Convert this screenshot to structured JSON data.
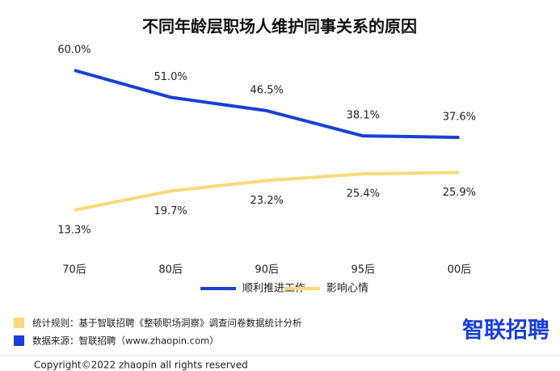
{
  "chart_data": {
    "type": "line",
    "title": "不同年龄层职场人维护同事关系的原因",
    "categories": [
      "70后",
      "80后",
      "90后",
      "95后",
      "00后"
    ],
    "series": [
      {
        "name": "顺利推进工作",
        "color": "#1a3fd6",
        "values": [
          60.0,
          51.0,
          46.5,
          38.1,
          37.6
        ],
        "value_labels": [
          "60.0%",
          "51.0%",
          "46.5%",
          "38.1%",
          "37.6%"
        ]
      },
      {
        "name": "影响心情",
        "color": "#f9d97a",
        "values": [
          13.3,
          19.7,
          23.2,
          25.4,
          25.9
        ],
        "value_labels": [
          "13.3%",
          "19.7%",
          "23.2%",
          "25.4%",
          "25.9%"
        ]
      }
    ]
  },
  "footer": {
    "rules": "统计规则：基于智联招聘《整顿职场洞察》调查问卷数据统计分析",
    "source": "数据来源：智联招聘（www.zhaopin.com）",
    "logo": "智联招聘",
    "copyright": "Copyright©2022 zhaopin all rights reserved"
  }
}
